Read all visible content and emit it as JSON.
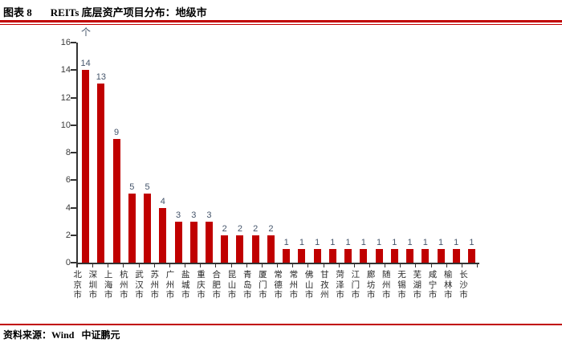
{
  "header": {
    "figure_label": "图表 8",
    "title": "REITs 底层资产项目分布：地级市"
  },
  "footer": {
    "source": "资料来源：Wind   中证鹏元"
  },
  "colors": {
    "accent_red": "#C00000",
    "bar": "#C00000",
    "axis": "#333333",
    "value_label": "#44546A"
  },
  "chart_data": {
    "type": "bar",
    "title": "REITs 底层资产项目分布：地级市",
    "unit_label": "个",
    "xlabel": "",
    "ylabel": "",
    "categories": [
      "北京市",
      "深圳市",
      "上海市",
      "杭州市",
      "武汉市",
      "苏州市",
      "广州市",
      "盐城市",
      "重庆市",
      "合肥市",
      "昆山市",
      "青岛市",
      "厦门市",
      "常德市",
      "常州市",
      "佛山市",
      "甘孜州",
      "菏泽市",
      "江门市",
      "廊坊市",
      "随州市",
      "无锡市",
      "芜湖市",
      "咸宁市",
      "榆林市",
      "长沙市"
    ],
    "values": [
      14,
      13,
      9,
      5,
      5,
      4,
      3,
      3,
      3,
      2,
      2,
      2,
      2,
      1,
      1,
      1,
      1,
      1,
      1,
      1,
      1,
      1,
      1,
      1,
      1,
      1
    ],
    "ylim": [
      0,
      16
    ],
    "yticks": [
      0,
      2,
      4,
      6,
      8,
      10,
      12,
      14,
      16
    ],
    "grid": false,
    "legend": "none",
    "value_labels": true,
    "bar_color": "#C00000"
  }
}
